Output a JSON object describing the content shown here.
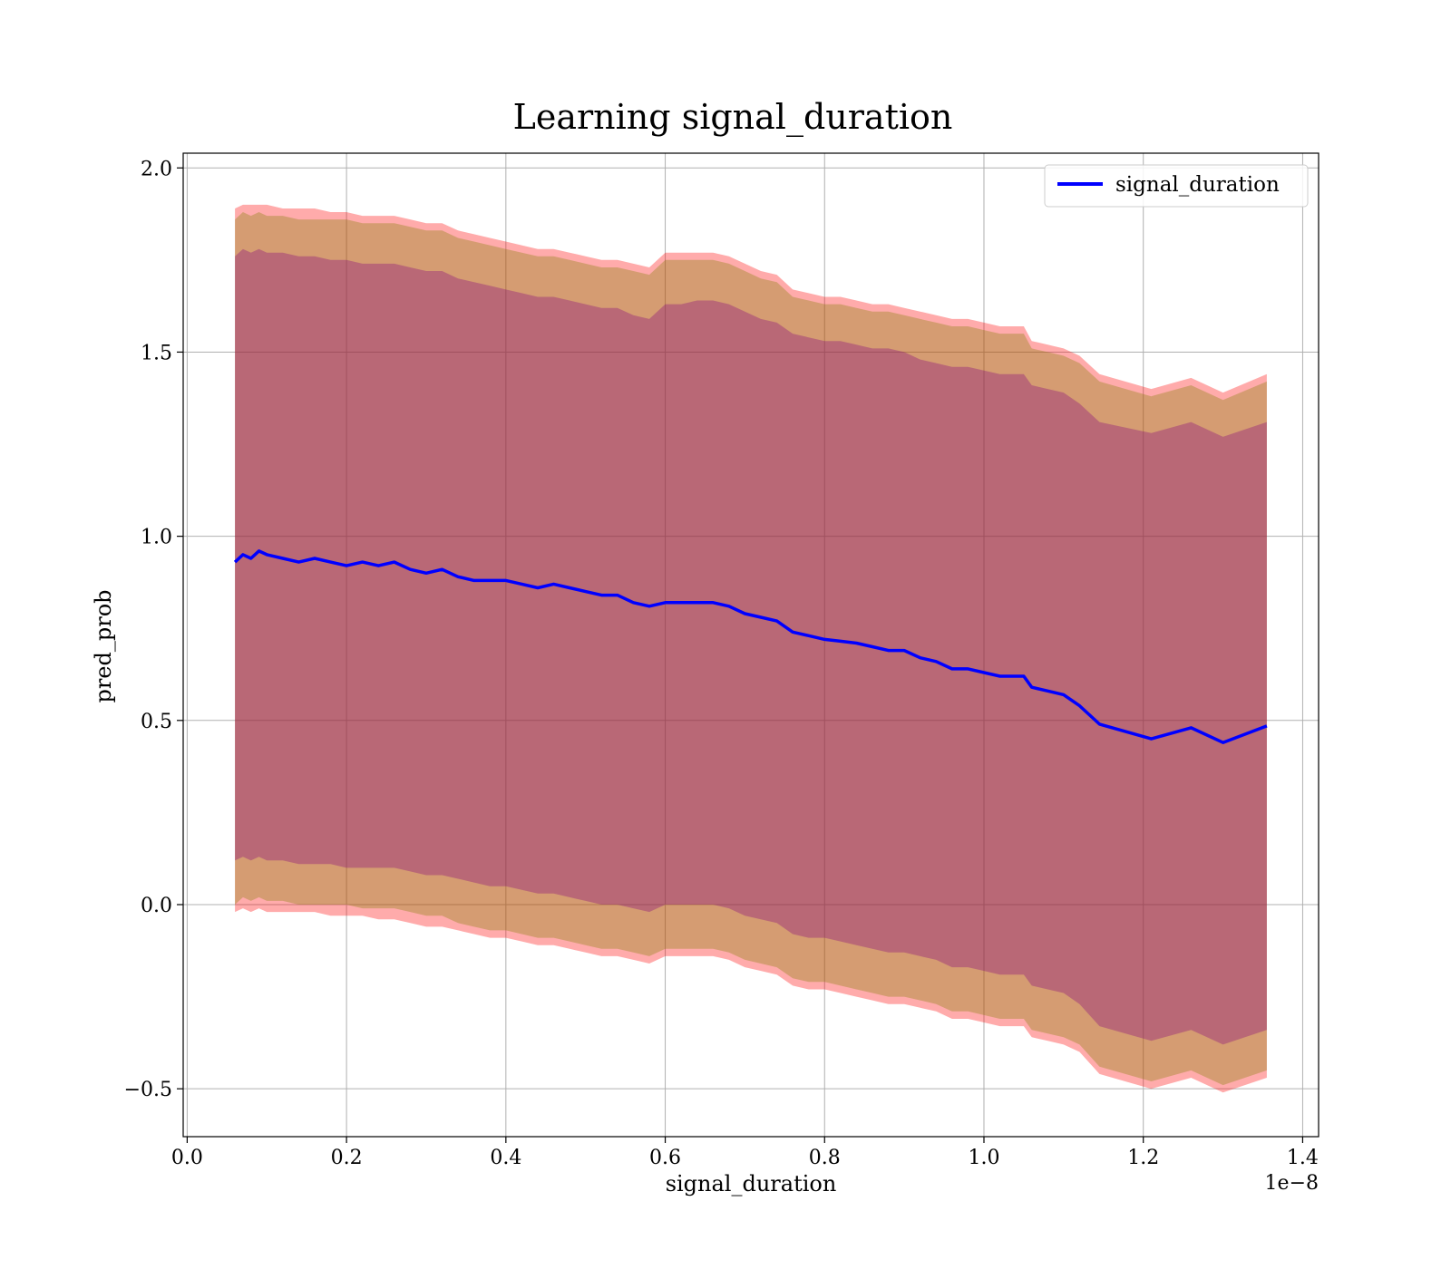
{
  "chart_data": {
    "type": "line",
    "title": "Learning signal_duration",
    "xlabel": "signal_duration",
    "ylabel": "pred_prob",
    "x_offset_label": "1e−8",
    "xlim": [
      -0.005,
      1.42
    ],
    "ylim": [
      -0.63,
      2.04
    ],
    "x_ticks": [
      0.0,
      0.2,
      0.4,
      0.6,
      0.8,
      1.0,
      1.2,
      1.4
    ],
    "x_tick_labels": [
      "0.0",
      "0.2",
      "0.4",
      "0.6",
      "0.8",
      "1.0",
      "1.2",
      "1.4"
    ],
    "y_ticks": [
      -0.5,
      0.0,
      0.5,
      1.0,
      1.5,
      2.0
    ],
    "y_tick_labels": [
      "−0.5",
      "0.0",
      "0.5",
      "1.0",
      "1.5",
      "2.0"
    ],
    "grid": true,
    "legend_position": "top-right",
    "series": [
      {
        "name": "signal_duration",
        "color": "#0000ff",
        "x": [
          0.06,
          0.07,
          0.08,
          0.09,
          0.1,
          0.12,
          0.14,
          0.16,
          0.18,
          0.2,
          0.22,
          0.24,
          0.26,
          0.28,
          0.3,
          0.32,
          0.34,
          0.36,
          0.38,
          0.4,
          0.42,
          0.44,
          0.46,
          0.48,
          0.5,
          0.52,
          0.54,
          0.56,
          0.58,
          0.6,
          0.62,
          0.64,
          0.66,
          0.68,
          0.7,
          0.72,
          0.74,
          0.76,
          0.78,
          0.8,
          0.82,
          0.84,
          0.86,
          0.88,
          0.9,
          0.92,
          0.94,
          0.96,
          0.98,
          1.0,
          1.02,
          1.05,
          1.06,
          1.08,
          1.1,
          1.12,
          1.145,
          1.21,
          1.26,
          1.3,
          1.355
        ],
        "values": [
          0.93,
          0.95,
          0.94,
          0.96,
          0.95,
          0.94,
          0.93,
          0.94,
          0.93,
          0.92,
          0.93,
          0.92,
          0.93,
          0.91,
          0.9,
          0.91,
          0.89,
          0.88,
          0.88,
          0.88,
          0.87,
          0.86,
          0.87,
          0.86,
          0.85,
          0.84,
          0.84,
          0.82,
          0.81,
          0.82,
          0.82,
          0.82,
          0.82,
          0.81,
          0.79,
          0.78,
          0.77,
          0.74,
          0.73,
          0.72,
          0.715,
          0.71,
          0.7,
          0.69,
          0.69,
          0.67,
          0.66,
          0.64,
          0.64,
          0.63,
          0.62,
          0.62,
          0.59,
          0.58,
          0.57,
          0.54,
          0.49,
          0.45,
          0.48,
          0.44,
          0.485
        ]
      }
    ],
    "bands": [
      {
        "color": "#ff0000",
        "opacity": 0.33,
        "upper": [
          1.89,
          1.9,
          1.9,
          1.9,
          1.9,
          1.89,
          1.89,
          1.89,
          1.88,
          1.88,
          1.87,
          1.87,
          1.87,
          1.86,
          1.85,
          1.85,
          1.83,
          1.82,
          1.81,
          1.8,
          1.79,
          1.78,
          1.78,
          1.77,
          1.76,
          1.75,
          1.75,
          1.74,
          1.73,
          1.77,
          1.77,
          1.77,
          1.77,
          1.76,
          1.74,
          1.72,
          1.71,
          1.67,
          1.66,
          1.65,
          1.65,
          1.64,
          1.63,
          1.63,
          1.62,
          1.61,
          1.6,
          1.59,
          1.59,
          1.58,
          1.57,
          1.57,
          1.53,
          1.52,
          1.51,
          1.49,
          1.44,
          1.4,
          1.43,
          1.39,
          1.44
        ],
        "lower": [
          -0.02,
          -0.01,
          -0.02,
          -0.01,
          -0.02,
          -0.02,
          -0.02,
          -0.02,
          -0.03,
          -0.03,
          -0.03,
          -0.04,
          -0.04,
          -0.05,
          -0.06,
          -0.06,
          -0.07,
          -0.08,
          -0.09,
          -0.09,
          -0.1,
          -0.11,
          -0.11,
          -0.12,
          -0.13,
          -0.14,
          -0.14,
          -0.15,
          -0.16,
          -0.14,
          -0.14,
          -0.14,
          -0.14,
          -0.15,
          -0.17,
          -0.18,
          -0.19,
          -0.22,
          -0.23,
          -0.23,
          -0.24,
          -0.25,
          -0.26,
          -0.27,
          -0.27,
          -0.28,
          -0.29,
          -0.31,
          -0.31,
          -0.32,
          -0.33,
          -0.33,
          -0.36,
          -0.37,
          -0.38,
          -0.4,
          -0.46,
          -0.5,
          -0.47,
          -0.51,
          -0.47
        ]
      },
      {
        "color": "#808000",
        "opacity": 0.33,
        "upper": [
          1.86,
          1.88,
          1.87,
          1.88,
          1.87,
          1.87,
          1.86,
          1.86,
          1.86,
          1.86,
          1.85,
          1.85,
          1.85,
          1.84,
          1.83,
          1.83,
          1.81,
          1.8,
          1.79,
          1.78,
          1.77,
          1.76,
          1.76,
          1.75,
          1.74,
          1.73,
          1.73,
          1.72,
          1.71,
          1.75,
          1.75,
          1.75,
          1.75,
          1.74,
          1.72,
          1.7,
          1.69,
          1.65,
          1.64,
          1.63,
          1.63,
          1.62,
          1.61,
          1.61,
          1.6,
          1.59,
          1.58,
          1.57,
          1.57,
          1.56,
          1.55,
          1.55,
          1.51,
          1.5,
          1.49,
          1.47,
          1.42,
          1.38,
          1.41,
          1.37,
          1.42
        ],
        "lower": [
          0.0,
          0.02,
          0.01,
          0.02,
          0.01,
          0.01,
          0.0,
          0.0,
          0.0,
          0.0,
          -0.01,
          -0.01,
          -0.01,
          -0.02,
          -0.03,
          -0.03,
          -0.05,
          -0.06,
          -0.07,
          -0.07,
          -0.08,
          -0.09,
          -0.09,
          -0.1,
          -0.11,
          -0.12,
          -0.12,
          -0.13,
          -0.14,
          -0.12,
          -0.12,
          -0.12,
          -0.12,
          -0.13,
          -0.15,
          -0.16,
          -0.17,
          -0.2,
          -0.21,
          -0.21,
          -0.22,
          -0.23,
          -0.24,
          -0.25,
          -0.25,
          -0.26,
          -0.27,
          -0.29,
          -0.29,
          -0.3,
          -0.31,
          -0.31,
          -0.34,
          -0.35,
          -0.36,
          -0.38,
          -0.44,
          -0.48,
          -0.45,
          -0.49,
          -0.45
        ]
      },
      {
        "color": "#800080",
        "opacity": 0.33,
        "upper": [
          1.76,
          1.78,
          1.77,
          1.78,
          1.77,
          1.77,
          1.76,
          1.76,
          1.75,
          1.75,
          1.74,
          1.74,
          1.74,
          1.73,
          1.72,
          1.72,
          1.7,
          1.69,
          1.68,
          1.67,
          1.66,
          1.65,
          1.65,
          1.64,
          1.63,
          1.62,
          1.62,
          1.6,
          1.59,
          1.63,
          1.63,
          1.64,
          1.64,
          1.63,
          1.61,
          1.59,
          1.58,
          1.55,
          1.54,
          1.53,
          1.53,
          1.52,
          1.51,
          1.51,
          1.5,
          1.48,
          1.47,
          1.46,
          1.46,
          1.45,
          1.44,
          1.44,
          1.41,
          1.4,
          1.39,
          1.36,
          1.31,
          1.28,
          1.31,
          1.27,
          1.31
        ],
        "lower": [
          0.12,
          0.13,
          0.12,
          0.13,
          0.12,
          0.12,
          0.11,
          0.11,
          0.11,
          0.1,
          0.1,
          0.1,
          0.1,
          0.09,
          0.08,
          0.08,
          0.07,
          0.06,
          0.05,
          0.05,
          0.04,
          0.03,
          0.03,
          0.02,
          0.01,
          0.0,
          0.0,
          -0.01,
          -0.02,
          0.0,
          0.0,
          0.0,
          0.0,
          -0.01,
          -0.03,
          -0.04,
          -0.05,
          -0.08,
          -0.09,
          -0.09,
          -0.1,
          -0.11,
          -0.12,
          -0.13,
          -0.13,
          -0.14,
          -0.15,
          -0.17,
          -0.17,
          -0.18,
          -0.19,
          -0.19,
          -0.22,
          -0.23,
          -0.24,
          -0.27,
          -0.33,
          -0.37,
          -0.34,
          -0.38,
          -0.34
        ]
      }
    ]
  }
}
